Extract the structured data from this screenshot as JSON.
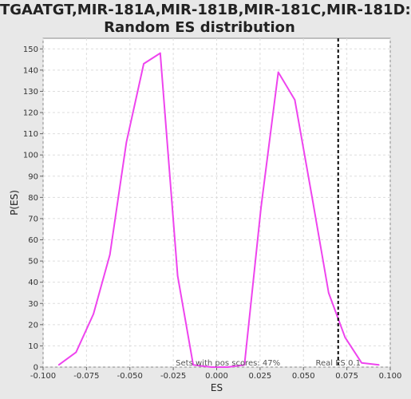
{
  "chart_data": {
    "type": "line",
    "title_line1": "TGAATGT,MIR-181A,MIR-181B,MIR-181C,MIR-181D:",
    "title_line2": "Random ES distribution",
    "xlabel": "ES",
    "ylabel": "P(ES)",
    "xlim": [
      -0.1,
      0.1
    ],
    "ylim": [
      0,
      155
    ],
    "x_ticks": [
      -0.1,
      -0.075,
      -0.05,
      -0.025,
      0.0,
      0.025,
      0.05,
      0.075,
      0.1
    ],
    "x_tick_labels": [
      "-0.100",
      "-0.075",
      "-0.050",
      "-0.025",
      "0.000",
      "0.025",
      "0.050",
      "0.075",
      "0.100"
    ],
    "y_ticks": [
      0,
      10,
      20,
      30,
      40,
      50,
      60,
      70,
      80,
      90,
      100,
      110,
      120,
      130,
      140,
      150
    ],
    "y_tick_labels": [
      "0",
      "10",
      "20",
      "30",
      "40",
      "50",
      "60",
      "70",
      "80",
      "90",
      "100",
      "110",
      "120",
      "130",
      "140",
      "150"
    ],
    "grid": true,
    "series": [
      {
        "color": "#ee44ee",
        "x": [
          -0.091,
          -0.081,
          -0.071,
          -0.0615,
          -0.052,
          -0.042,
          -0.0325,
          -0.0225,
          -0.0135,
          -0.003,
          0.0065,
          0.016,
          0.0255,
          0.0355,
          0.045,
          0.055,
          0.0645,
          0.074,
          0.0835,
          0.0935
        ],
        "y": [
          1,
          7,
          25,
          53,
          106,
          143,
          148,
          43,
          1,
          0,
          0,
          1,
          75,
          139,
          126,
          80,
          35,
          14,
          2,
          1
        ]
      }
    ],
    "real_es": {
      "value": 0.07,
      "label": "Real ES 0.1",
      "line_color": "#000000"
    },
    "annotation": "Sets with pos scores: 47%"
  }
}
